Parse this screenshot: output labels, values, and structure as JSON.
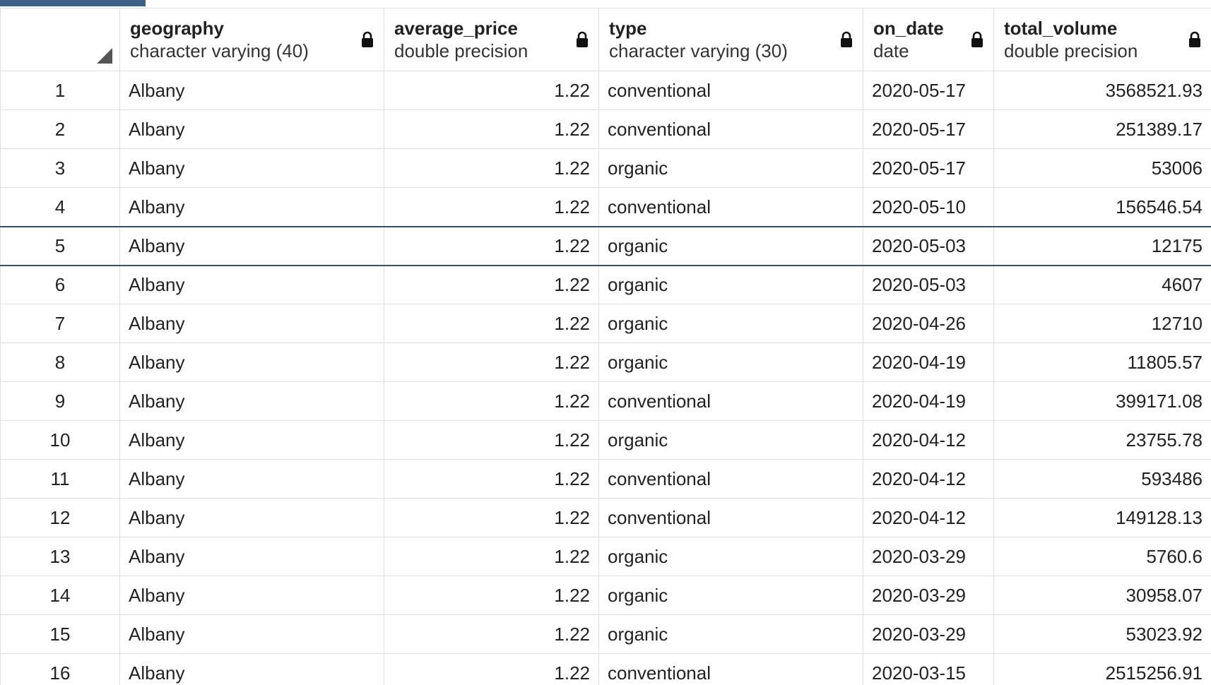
{
  "columns": [
    {
      "name": "geography",
      "type": "character varying (40)"
    },
    {
      "name": "average_price",
      "type": "double precision"
    },
    {
      "name": "type",
      "type": "character varying (30)"
    },
    {
      "name": "on_date",
      "type": "date"
    },
    {
      "name": "total_volume",
      "type": "double precision"
    }
  ],
  "selected_row": 5,
  "rows": [
    {
      "n": "1",
      "geography": "Albany",
      "average_price": "1.22",
      "type": "conventional",
      "on_date": "2020-05-17",
      "total_volume": "3568521.93"
    },
    {
      "n": "2",
      "geography": "Albany",
      "average_price": "1.22",
      "type": "conventional",
      "on_date": "2020-05-17",
      "total_volume": "251389.17"
    },
    {
      "n": "3",
      "geography": "Albany",
      "average_price": "1.22",
      "type": "organic",
      "on_date": "2020-05-17",
      "total_volume": "53006"
    },
    {
      "n": "4",
      "geography": "Albany",
      "average_price": "1.22",
      "type": "conventional",
      "on_date": "2020-05-10",
      "total_volume": "156546.54"
    },
    {
      "n": "5",
      "geography": "Albany",
      "average_price": "1.22",
      "type": "organic",
      "on_date": "2020-05-03",
      "total_volume": "12175"
    },
    {
      "n": "6",
      "geography": "Albany",
      "average_price": "1.22",
      "type": "organic",
      "on_date": "2020-05-03",
      "total_volume": "4607"
    },
    {
      "n": "7",
      "geography": "Albany",
      "average_price": "1.22",
      "type": "organic",
      "on_date": "2020-04-26",
      "total_volume": "12710"
    },
    {
      "n": "8",
      "geography": "Albany",
      "average_price": "1.22",
      "type": "organic",
      "on_date": "2020-04-19",
      "total_volume": "11805.57"
    },
    {
      "n": "9",
      "geography": "Albany",
      "average_price": "1.22",
      "type": "conventional",
      "on_date": "2020-04-19",
      "total_volume": "399171.08"
    },
    {
      "n": "10",
      "geography": "Albany",
      "average_price": "1.22",
      "type": "organic",
      "on_date": "2020-04-12",
      "total_volume": "23755.78"
    },
    {
      "n": "11",
      "geography": "Albany",
      "average_price": "1.22",
      "type": "conventional",
      "on_date": "2020-04-12",
      "total_volume": "593486"
    },
    {
      "n": "12",
      "geography": "Albany",
      "average_price": "1.22",
      "type": "conventional",
      "on_date": "2020-04-12",
      "total_volume": "149128.13"
    },
    {
      "n": "13",
      "geography": "Albany",
      "average_price": "1.22",
      "type": "organic",
      "on_date": "2020-03-29",
      "total_volume": "5760.6"
    },
    {
      "n": "14",
      "geography": "Albany",
      "average_price": "1.22",
      "type": "organic",
      "on_date": "2020-03-29",
      "total_volume": "30958.07"
    },
    {
      "n": "15",
      "geography": "Albany",
      "average_price": "1.22",
      "type": "organic",
      "on_date": "2020-03-29",
      "total_volume": "53023.92"
    },
    {
      "n": "16",
      "geography": "Albany",
      "average_price": "1.22",
      "type": "conventional",
      "on_date": "2020-03-15",
      "total_volume": "2515256.91"
    }
  ],
  "icons": {
    "lock": "lock-icon",
    "corner": "select-all-triangle-icon"
  },
  "colors": {
    "tab_indicator": "#3d6187",
    "selected_border": "#2f4f74",
    "grid_line": "#dddddd"
  }
}
